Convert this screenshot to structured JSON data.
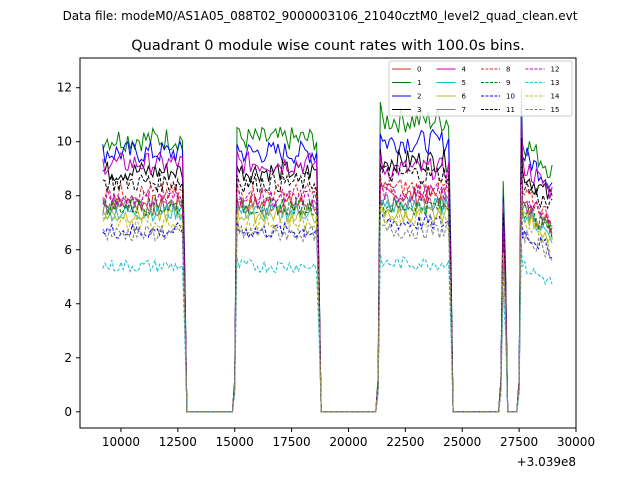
{
  "chart_data": {
    "type": "line",
    "suptitle": "Data file: modeM0/AS1A05_088T02_9000003106_21040cztM0_level2_quad_clean.evt",
    "title": "Quadrant 0 module wise count rates with 100.0s bins.",
    "xlabel": "",
    "ylabel": "",
    "x_offset_label": "+3.039e8",
    "xlim": [
      8200,
      30000
    ],
    "ylim": [
      -0.6,
      13.1
    ],
    "xticks": [
      10000,
      12500,
      15000,
      17500,
      20000,
      22500,
      25000,
      27500,
      30000
    ],
    "xtick_labels": [
      "10000",
      "12500",
      "15000",
      "17500",
      "20000",
      "22500",
      "25000",
      "27500",
      "30000"
    ],
    "yticks": [
      0,
      2,
      4,
      6,
      8,
      10,
      12
    ],
    "ytick_labels": [
      "0",
      "2",
      "4",
      "6",
      "8",
      "10",
      "12"
    ],
    "grid": false,
    "legend_position": "top-right",
    "legend_columns": 4,
    "segments": [
      {
        "start": 9200,
        "end": 12700,
        "drop_to": 12900,
        "rise_from": 14900
      },
      {
        "start": 15100,
        "end": 18600,
        "drop_to": 18800,
        "rise_from": 21200
      },
      {
        "start": 21400,
        "end": 24400,
        "drop_to": 24600,
        "rise_from": 26600
      },
      {
        "start": 26800,
        "end": 26800,
        "drop_to": 27000,
        "rise_from": 27400
      },
      {
        "start": 27600,
        "end": 29000,
        "drop_to": null,
        "rise_from": null
      }
    ],
    "series": [
      {
        "name": "0",
        "color": "#d62728",
        "dash": "solid",
        "level": 7.7,
        "seg3_level": 8.0
      },
      {
        "name": "1",
        "color": "#008000",
        "dash": "solid",
        "level": 10.1,
        "seg3_level": 10.8
      },
      {
        "name": "2",
        "color": "#0000ff",
        "dash": "solid",
        "level": 9.6,
        "seg3_level": 10.0
      },
      {
        "name": "3",
        "color": "#000000",
        "dash": "solid",
        "level": 8.9,
        "seg3_level": 9.3
      },
      {
        "name": "4",
        "color": "#bf00bf",
        "dash": "solid",
        "level": 9.2,
        "seg3_level": 9.0
      },
      {
        "name": "5",
        "color": "#17becf",
        "dash": "solid",
        "level": 7.4,
        "seg3_level": 7.6
      },
      {
        "name": "6",
        "color": "#bcbd22",
        "dash": "solid",
        "level": 7.3,
        "seg3_level": 7.3
      },
      {
        "name": "7",
        "color": "#7f7f7f",
        "dash": "solid",
        "level": 7.6,
        "seg3_level": 7.7
      },
      {
        "name": "8",
        "color": "#d62728",
        "dash": "dashed",
        "level": 8.1,
        "seg3_level": 8.3
      },
      {
        "name": "9",
        "color": "#008000",
        "dash": "dashed",
        "level": 7.6,
        "seg3_level": 7.6
      },
      {
        "name": "10",
        "color": "#0000ff",
        "dash": "dashed",
        "level": 6.7,
        "seg3_level": 7.0
      },
      {
        "name": "11",
        "color": "#000000",
        "dash": "dashed",
        "level": 8.5,
        "seg3_level": 8.8
      },
      {
        "name": "12",
        "color": "#bf00bf",
        "dash": "dashed",
        "level": 7.9,
        "seg3_level": 8.1
      },
      {
        "name": "13",
        "color": "#17becf",
        "dash": "dashed",
        "level": 5.4,
        "seg3_level": 5.5
      },
      {
        "name": "14",
        "color": "#bcbd22",
        "dash": "dashed",
        "level": 7.0,
        "seg3_level": 7.2
      },
      {
        "name": "15",
        "color": "#7f7f7f",
        "dash": "dashed",
        "level": 6.6,
        "seg3_level": 6.7
      }
    ]
  }
}
